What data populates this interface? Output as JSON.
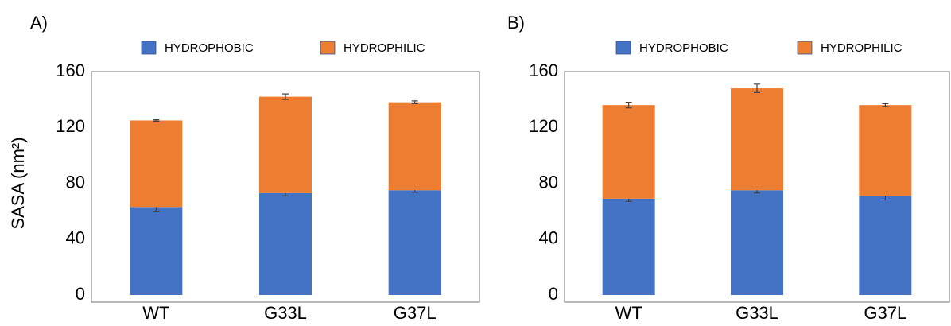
{
  "chart_data": [
    {
      "type": "stacked-bar",
      "title": "A)",
      "y_label": "SASA (nm²)",
      "categories": [
        "WT",
        "G33L",
        "G37L"
      ],
      "series": [
        {
          "name": "HYDROPHOBIC",
          "color": "#4472c4",
          "values": [
            63,
            73,
            75
          ],
          "errors": [
            3,
            2,
            1.5
          ]
        },
        {
          "name": "HYDROPHILIC",
          "color": "#ed7d31",
          "values": [
            62,
            69,
            63
          ],
          "errors": [
            0.5,
            2,
            1
          ]
        }
      ],
      "ylim": [
        0,
        160
      ],
      "yticks": [
        0,
        40,
        80,
        120,
        160
      ]
    },
    {
      "type": "stacked-bar",
      "title": "B)",
      "categories": [
        "WT",
        "G33L",
        "G37L"
      ],
      "series": [
        {
          "name": "HYDROPHOBIC",
          "color": "#4472c4",
          "values": [
            69,
            75,
            71
          ],
          "errors": [
            2,
            2,
            3
          ]
        },
        {
          "name": "HYDROPHILIC",
          "color": "#ed7d31",
          "values": [
            67,
            73,
            65
          ],
          "errors": [
            2,
            3,
            1
          ]
        }
      ],
      "ylim": [
        0,
        160
      ],
      "yticks": [
        0,
        40,
        80,
        120,
        160
      ]
    }
  ]
}
